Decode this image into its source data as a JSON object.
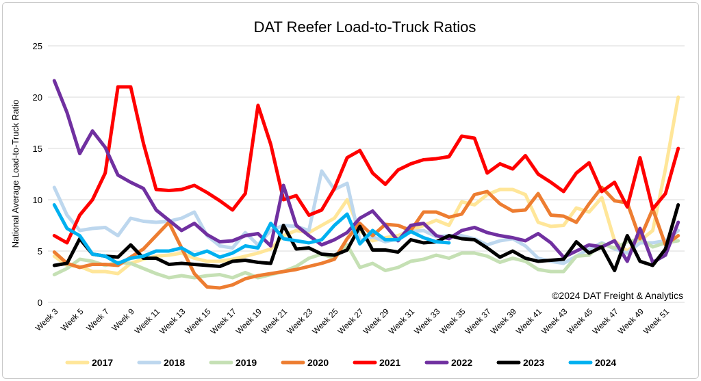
{
  "chart_data": {
    "type": "line",
    "title": "DAT Reefer Load-to-Truck Ratios",
    "ylabel": "National Average Load-to-Truck Ratio",
    "xlabel": "",
    "copyright": "©2024 DAT Freight & Analytics",
    "ylim": [
      0,
      25
    ],
    "yticks": [
      0,
      5,
      10,
      15,
      20,
      25
    ],
    "grid": true,
    "legend_position": "bottom",
    "x": [
      "Week 3",
      "Week 4",
      "Week 5",
      "Week 6",
      "Week 7",
      "Week 8",
      "Week 9",
      "Week 10",
      "Week 11",
      "Week 12",
      "Week 13",
      "Week 14",
      "Week 15",
      "Week 16",
      "Week 17",
      "Week 18",
      "Week 19",
      "Week 20",
      "Week 21",
      "Week 22",
      "Week 23",
      "Week 24",
      "Week 25",
      "Week 26",
      "Week 27",
      "Week 28",
      "Week 29",
      "Week 30",
      "Week 31",
      "Week 32",
      "Week 33",
      "Week 34",
      "Week 35",
      "Week 36",
      "Week 37",
      "Week 38",
      "Week 39",
      "Week 40",
      "Week 41",
      "Week 42",
      "Week 43",
      "Week 44",
      "Week 45",
      "Week 46",
      "Week 47",
      "Week 48",
      "Week 49",
      "Week 50",
      "Week 51",
      "Week 52"
    ],
    "xtick_labels": [
      "Week 3",
      "Week 5",
      "Week 7",
      "Week 9",
      "Week 11",
      "Week 13",
      "Week 15",
      "Week 17",
      "Week 19",
      "Week 21",
      "Week 23",
      "Week 25",
      "Week 27",
      "Week 29",
      "Week 31",
      "Week 33",
      "Week 35",
      "Week 37",
      "Week 39",
      "Week 41",
      "Week 43",
      "Week 45",
      "Week 47",
      "Week 49",
      "Week 51"
    ],
    "series": [
      {
        "name": "2017",
        "color": "#FFE699",
        "values": [
          4.5,
          3.6,
          3.5,
          3.0,
          3.0,
          2.8,
          3.8,
          4.2,
          4.5,
          4.6,
          4.8,
          4.3,
          4.0,
          4.0,
          4.2,
          4.5,
          4.8,
          5.2,
          6.5,
          7.0,
          6.8,
          7.5,
          8.2,
          10.0,
          7.0,
          6.0,
          6.3,
          6.5,
          7.0,
          7.5,
          8.0,
          7.5,
          9.8,
          9.5,
          10.5,
          11.0,
          11.0,
          10.5,
          7.8,
          7.4,
          7.5,
          9.2,
          8.8,
          10.2,
          6.0,
          5.0,
          6.0,
          7.0,
          13.0,
          20.0
        ]
      },
      {
        "name": "2018",
        "color": "#BDD7EE",
        "values": [
          11.2,
          8.5,
          7.0,
          7.2,
          7.3,
          6.5,
          8.2,
          7.9,
          7.8,
          7.9,
          8.2,
          8.8,
          6.5,
          5.5,
          5.3,
          6.8,
          5.6,
          7.0,
          7.5,
          7.4,
          7.0,
          12.8,
          11.0,
          11.6,
          6.0,
          6.4,
          5.9,
          6.2,
          6.9,
          7.0,
          6.4,
          6.5,
          6.5,
          6.2,
          5.6,
          6.0,
          6.2,
          5.5,
          4.3,
          4.0,
          3.8,
          4.5,
          5.2,
          5.8,
          5.2,
          4.8,
          5.8,
          5.8,
          6.0,
          7.0
        ]
      },
      {
        "name": "2019",
        "color": "#C5E0B4",
        "values": [
          2.7,
          3.3,
          4.2,
          4.0,
          3.6,
          3.9,
          3.8,
          3.3,
          2.8,
          2.4,
          2.6,
          2.4,
          2.6,
          2.7,
          2.4,
          2.9,
          2.4,
          2.7,
          3.0,
          3.5,
          4.3,
          4.7,
          4.3,
          5.6,
          3.4,
          3.8,
          3.1,
          3.4,
          4.0,
          4.2,
          4.6,
          4.3,
          4.8,
          4.8,
          4.5,
          3.9,
          4.3,
          4.0,
          3.2,
          3.0,
          3.0,
          4.5,
          4.6,
          5.7,
          5.3,
          5.9,
          6.2,
          5.4,
          5.8,
          6.0
        ]
      },
      {
        "name": "2020",
        "color": "#ED7D31",
        "values": [
          4.9,
          3.8,
          3.4,
          3.7,
          3.7,
          3.6,
          4.4,
          5.2,
          6.5,
          7.8,
          5.3,
          2.8,
          1.5,
          1.4,
          1.7,
          2.3,
          2.6,
          2.8,
          3.0,
          3.2,
          3.5,
          3.8,
          4.2,
          6.2,
          7.7,
          6.5,
          7.6,
          7.5,
          7.0,
          8.8,
          8.8,
          8.3,
          8.6,
          10.5,
          10.8,
          9.6,
          8.9,
          9.0,
          10.6,
          8.5,
          8.4,
          7.8,
          9.6,
          11.2,
          9.9,
          9.7,
          6.2,
          9.1,
          5.6,
          6.5
        ]
      },
      {
        "name": "2021",
        "color": "#FF0000",
        "values": [
          6.5,
          5.8,
          8.5,
          10.0,
          12.6,
          21.0,
          21.0,
          15.5,
          11.0,
          10.9,
          11.0,
          11.4,
          10.7,
          9.9,
          9.0,
          10.6,
          19.2,
          15.4,
          10.0,
          10.4,
          8.5,
          9.0,
          11.1,
          14.1,
          14.8,
          12.6,
          11.5,
          12.9,
          13.5,
          13.9,
          14.0,
          14.2,
          16.2,
          16.0,
          12.6,
          13.5,
          13.0,
          14.3,
          12.5,
          11.7,
          10.8,
          12.6,
          13.6,
          10.8,
          11.7,
          9.3,
          14.1,
          9.1,
          10.6,
          15.0
        ]
      },
      {
        "name": "2022",
        "color": "#7030A0",
        "values": [
          21.6,
          18.5,
          14.5,
          16.7,
          15.1,
          12.4,
          11.7,
          11.1,
          9.0,
          8.0,
          7.0,
          7.7,
          6.6,
          5.9,
          6.0,
          6.5,
          6.7,
          5.5,
          11.4,
          7.5,
          6.5,
          5.6,
          6.1,
          6.8,
          8.2,
          8.9,
          7.5,
          6.0,
          7.5,
          7.7,
          6.5,
          6.2,
          7.0,
          7.3,
          6.8,
          6.5,
          6.3,
          6.0,
          6.7,
          5.8,
          4.4,
          5.0,
          5.6,
          5.4,
          6.0,
          4.0,
          7.2,
          3.9,
          4.6,
          7.8
        ]
      },
      {
        "name": "2023",
        "color": "#000000",
        "values": [
          3.6,
          3.8,
          6.2,
          4.7,
          4.5,
          4.4,
          5.6,
          4.3,
          4.3,
          3.7,
          3.8,
          3.7,
          3.6,
          3.5,
          4.0,
          4.1,
          3.9,
          3.8,
          7.5,
          5.2,
          5.3,
          4.7,
          4.6,
          5.1,
          7.4,
          5.1,
          5.1,
          4.9,
          6.1,
          5.8,
          5.9,
          6.5,
          6.2,
          6.1,
          5.3,
          4.4,
          5.0,
          4.3,
          4.0,
          4.1,
          4.2,
          5.9,
          4.8,
          5.4,
          3.1,
          6.5,
          4.0,
          3.6,
          5.2,
          9.5
        ]
      },
      {
        "name": "2024",
        "color": "#00B0F0",
        "values": [
          9.5,
          7.2,
          6.5,
          4.7,
          4.5,
          3.8,
          4.3,
          4.5,
          5.0,
          5.0,
          5.3,
          4.6,
          5.0,
          4.4,
          4.8,
          5.5,
          5.3,
          7.7,
          6.2,
          6.0,
          5.8,
          6.1,
          7.5,
          8.6,
          5.7,
          7.0,
          6.1,
          6.1,
          6.9,
          6.3,
          5.9,
          5.8,
          null,
          null,
          null,
          null,
          null,
          null,
          null,
          null,
          null,
          null,
          null,
          null,
          null,
          null,
          null,
          null,
          null,
          null
        ]
      }
    ]
  }
}
